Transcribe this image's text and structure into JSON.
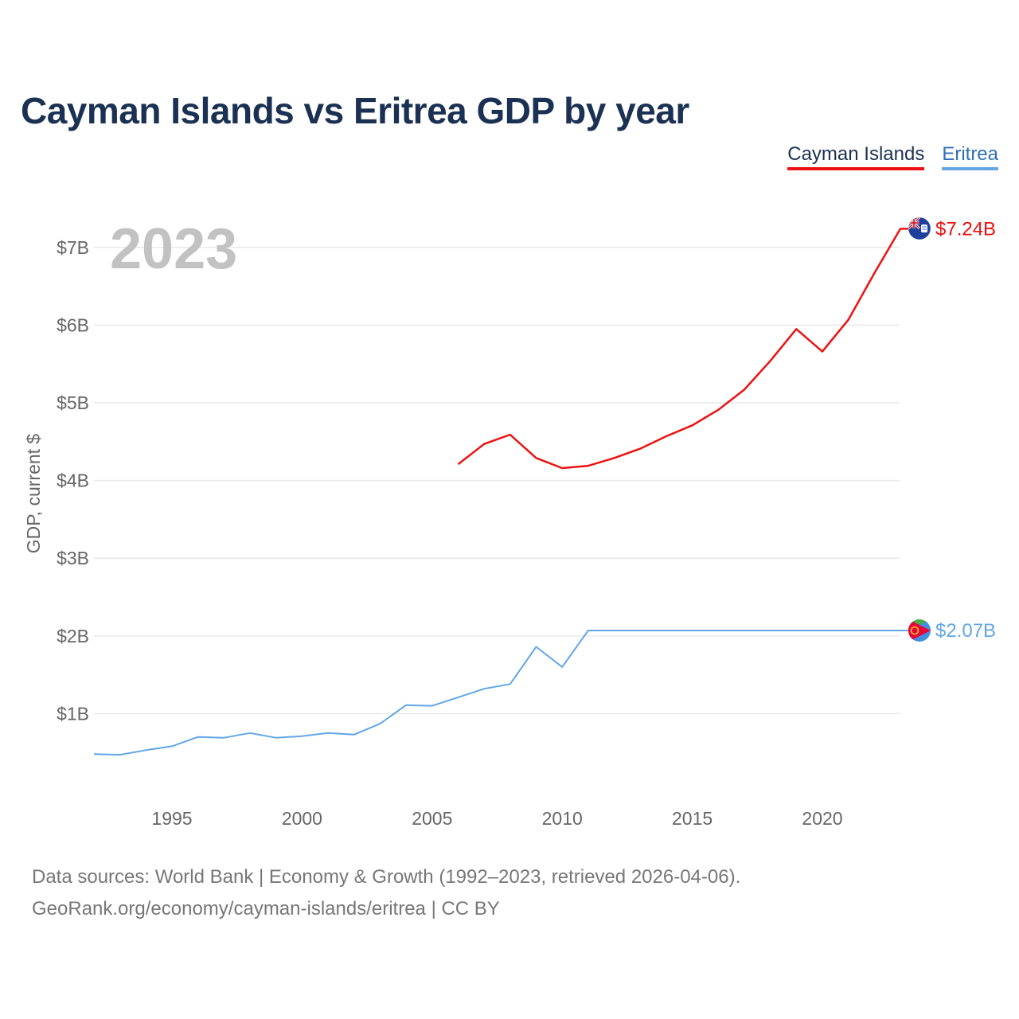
{
  "page": {
    "title": "Cayman Islands vs Eritrea GDP by year",
    "footer_line1": "Data sources: World Bank | Economy & Growth (1992–2023, retrieved 2026-04-06).",
    "footer_line2": "GeoRank.org/economy/cayman-islands/eritrea | CC BY"
  },
  "legend": {
    "cayman": "Cayman Islands",
    "eritrea": "Eritrea"
  },
  "colors": {
    "cayman": "#ee1111",
    "eritrea": "#62a6e6",
    "title": "#1b3153",
    "axis_text": "#666666",
    "year_watermark": "#c2c2c2",
    "grid": "#e9e9e9"
  },
  "chart_data": {
    "type": "line",
    "title": "Cayman Islands vs Eritrea GDP by year",
    "xlabel": "",
    "ylabel": "GDP, current $",
    "current_year_label": "2023",
    "xlim": [
      1992,
      2023
    ],
    "ylim": [
      0,
      7.5
    ],
    "x_ticks": [
      1995,
      2000,
      2005,
      2010,
      2015,
      2020
    ],
    "x_tick_labels": [
      "1995",
      "2000",
      "2005",
      "2010",
      "2015",
      "2020"
    ],
    "y_ticks": [
      1,
      2,
      3,
      4,
      5,
      6,
      7
    ],
    "y_tick_labels": [
      "$1B",
      "$2B",
      "$3B",
      "$4B",
      "$5B",
      "$6B",
      "$7B"
    ],
    "grid": true,
    "legend_position": "top-right",
    "series": [
      {
        "name": "Cayman Islands",
        "color": "#ee1111",
        "end_label": "$7.24B",
        "flag": "cayman-islands-flag",
        "x": [
          2006,
          2007,
          2008,
          2009,
          2010,
          2011,
          2012,
          2013,
          2014,
          2015,
          2016,
          2017,
          2018,
          2019,
          2020,
          2021,
          2022,
          2023
        ],
        "values": [
          4.21,
          4.47,
          4.59,
          4.29,
          4.16,
          4.19,
          4.29,
          4.41,
          4.57,
          4.71,
          4.91,
          5.17,
          5.54,
          5.95,
          5.66,
          6.07,
          6.67,
          7.24
        ]
      },
      {
        "name": "Eritrea",
        "color": "#62a6e6",
        "end_label": "$2.07B",
        "flag": "eritrea-flag",
        "x": [
          1992,
          1993,
          1994,
          1995,
          1996,
          1997,
          1998,
          1999,
          2000,
          2001,
          2002,
          2003,
          2004,
          2005,
          2006,
          2007,
          2008,
          2009,
          2010,
          2011,
          2012,
          2013,
          2014,
          2015,
          2016,
          2017,
          2018,
          2019,
          2020,
          2021,
          2022,
          2023
        ],
        "values": [
          0.48,
          0.47,
          0.53,
          0.58,
          0.7,
          0.69,
          0.75,
          0.69,
          0.71,
          0.75,
          0.73,
          0.87,
          1.11,
          1.1,
          1.21,
          1.32,
          1.38,
          1.86,
          1.6,
          2.07,
          2.07,
          2.07,
          2.07,
          2.07,
          2.07,
          2.07,
          2.07,
          2.07,
          2.07,
          2.07,
          2.07,
          2.07
        ]
      }
    ]
  }
}
